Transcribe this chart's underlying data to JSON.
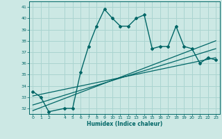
{
  "xlabel": "Humidex (Indice chaleur)",
  "ylabel": "",
  "bg_color": "#cce8e4",
  "grid_color": "#aad4d0",
  "line_color": "#006666",
  "ylim": [
    31.5,
    41.5
  ],
  "xlim": [
    -0.5,
    23.5
  ],
  "yticks": [
    32,
    33,
    34,
    35,
    36,
    37,
    38,
    39,
    40,
    41
  ],
  "xticks": [
    0,
    1,
    2,
    4,
    5,
    6,
    7,
    8,
    9,
    10,
    11,
    12,
    13,
    14,
    15,
    16,
    17,
    18,
    19,
    20,
    21,
    22,
    23
  ],
  "main_line_x": [
    0,
    1,
    2,
    4,
    5,
    6,
    7,
    8,
    9,
    10,
    11,
    12,
    13,
    14,
    15,
    16,
    17,
    18,
    19,
    20,
    21,
    22,
    23
  ],
  "main_line_y": [
    33.5,
    33.0,
    31.7,
    32.0,
    32.0,
    35.2,
    37.5,
    39.3,
    40.8,
    40.0,
    39.3,
    39.3,
    40.0,
    40.3,
    37.3,
    37.5,
    37.5,
    39.3,
    37.5,
    37.3,
    36.0,
    36.5,
    36.3
  ],
  "trend_line1_x": [
    0,
    23
  ],
  "trend_line1_y": [
    31.8,
    38.0
  ],
  "trend_line2_x": [
    0,
    23
  ],
  "trend_line2_y": [
    32.3,
    37.3
  ],
  "trend_line3_x": [
    0,
    23
  ],
  "trend_line3_y": [
    33.1,
    36.5
  ]
}
